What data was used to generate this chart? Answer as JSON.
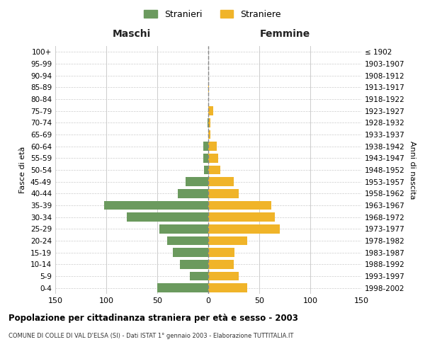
{
  "age_groups": [
    "0-4",
    "5-9",
    "10-14",
    "15-19",
    "20-24",
    "25-29",
    "30-34",
    "35-39",
    "40-44",
    "45-49",
    "50-54",
    "55-59",
    "60-64",
    "65-69",
    "70-74",
    "75-79",
    "80-84",
    "85-89",
    "90-94",
    "95-99",
    "100+"
  ],
  "birth_years": [
    "1998-2002",
    "1993-1997",
    "1988-1992",
    "1983-1987",
    "1978-1982",
    "1973-1977",
    "1968-1972",
    "1963-1967",
    "1958-1962",
    "1953-1957",
    "1948-1952",
    "1943-1947",
    "1938-1942",
    "1933-1937",
    "1928-1932",
    "1923-1927",
    "1918-1922",
    "1913-1917",
    "1908-1912",
    "1903-1907",
    "≤ 1902"
  ],
  "males": [
    50,
    18,
    28,
    35,
    40,
    48,
    80,
    102,
    30,
    22,
    4,
    5,
    5,
    0,
    1,
    0,
    0,
    0,
    0,
    0,
    0
  ],
  "females": [
    38,
    30,
    25,
    26,
    38,
    70,
    65,
    62,
    30,
    25,
    12,
    10,
    8,
    2,
    2,
    5,
    0,
    1,
    0,
    0,
    0
  ],
  "male_color": "#6b9a5e",
  "female_color": "#f0b429",
  "grid_color": "#cccccc",
  "center_line_color": "#888888",
  "xlim": 150,
  "xlabel_left": "Maschi",
  "xlabel_right": "Femmine",
  "ylabel_left": "Fasce di età",
  "ylabel_right": "Anni di nascita",
  "legend_male": "Stranieri",
  "legend_female": "Straniere",
  "title": "Popolazione per cittadinanza straniera per età e sesso - 2003",
  "subtitle": "COMUNE DI COLLE DI VAL D'ELSA (SI) - Dati ISTAT 1° gennaio 2003 - Elaborazione TUTTITALIA.IT",
  "bg_color": "#ffffff"
}
